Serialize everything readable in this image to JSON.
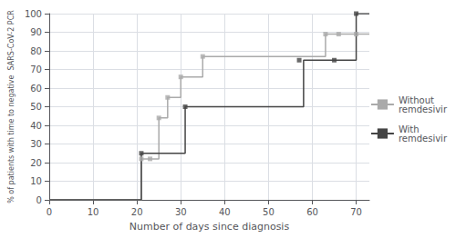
{
  "chart_data": {
    "type": "line",
    "xlabel": "Number of days since diagnosis",
    "ylabel": "% of patients with time to negative  SARS-CoV-2 PCR",
    "series": [
      {
        "name": "Without\nremdesivir",
        "color": "#aaaaaa",
        "marker": "square",
        "x": [
          0,
          20,
          21,
          21,
          23,
          23,
          25,
          25,
          27,
          27,
          30,
          30,
          32,
          32,
          35,
          35,
          62,
          62,
          63,
          63,
          66,
          66,
          70,
          73
        ],
        "values": [
          0,
          0,
          0,
          22,
          22,
          22,
          22,
          44,
          44,
          55,
          55,
          66,
          66,
          66,
          66,
          77,
          77,
          77,
          77,
          89,
          89,
          89,
          89,
          89
        ],
        "marker_x": [
          21,
          23,
          25,
          27,
          30,
          35,
          63,
          66,
          70
        ],
        "marker_values": [
          22,
          22,
          44,
          55,
          66,
          77,
          89,
          89,
          89
        ]
      },
      {
        "name": "With\nremdesivir",
        "color": "#444444",
        "marker": "square",
        "x": [
          0,
          20,
          21,
          21,
          30,
          30,
          31,
          31,
          57,
          57,
          58,
          58,
          65,
          65,
          70,
          70,
          73
        ],
        "values": [
          0,
          0,
          0,
          25,
          25,
          25,
          25,
          50,
          50,
          50,
          50,
          75,
          75,
          75,
          75,
          100,
          100
        ],
        "marker_x": [
          21,
          31,
          57,
          65,
          70
        ],
        "marker_values": [
          25,
          50,
          75,
          75,
          100
        ]
      }
    ],
    "xlim": [
      0,
      73
    ],
    "ylim": [
      0,
      100
    ],
    "xticks": [
      0,
      10,
      20,
      30,
      40,
      50,
      60,
      70
    ],
    "yticks": [
      0,
      10,
      20,
      30,
      40,
      50,
      60,
      70,
      80,
      90,
      100
    ],
    "grid": true,
    "legend": "right"
  }
}
